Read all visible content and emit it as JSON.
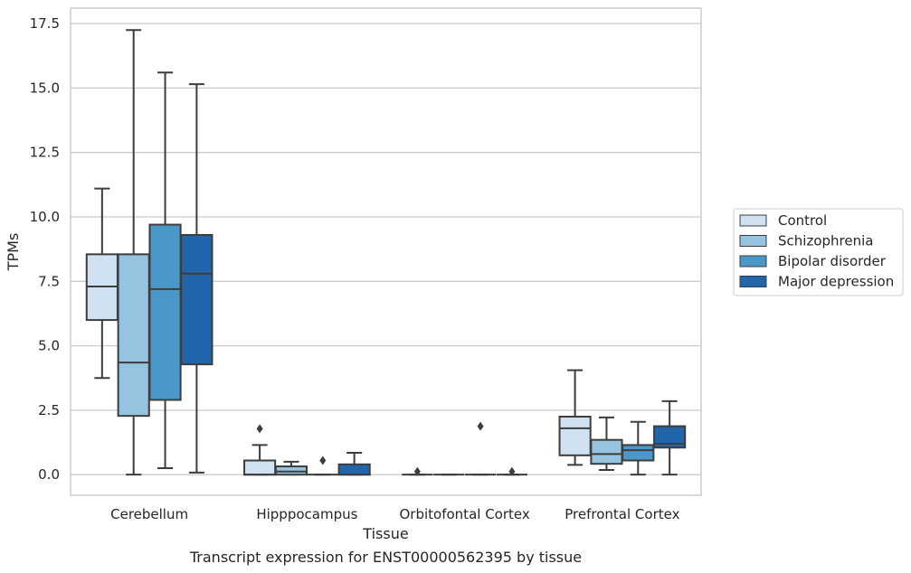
{
  "caption": "Transcript expression for ENST00000562395 by tissue",
  "chart_data": {
    "type": "box",
    "xlabel": "Tissue",
    "ylabel": "TPMs",
    "ylim": [
      -0.8,
      18.1
    ],
    "yticks": [
      0.0,
      2.5,
      5.0,
      7.5,
      10.0,
      12.5,
      15.0,
      17.5
    ],
    "ytick_labels": [
      "0.0",
      "2.5",
      "5.0",
      "7.5",
      "10.0",
      "12.5",
      "15.0",
      "17.5"
    ],
    "grid": "horizontal",
    "legend_position": "right",
    "categories": [
      "Cerebellum",
      "Hipppocampus",
      "Orbitofontal Cortex",
      "Prefrontal Cortex"
    ],
    "series": [
      {
        "name": "Control",
        "color": "#d0e1f2",
        "boxes": [
          {
            "whisker_low": 3.75,
            "q1": 6.0,
            "median": 7.3,
            "q3": 8.55,
            "whisker_high": 11.1,
            "outliers": []
          },
          {
            "whisker_low": 0.0,
            "q1": 0.0,
            "median": 0.0,
            "q3": 0.55,
            "whisker_high": 1.15,
            "outliers": [
              1.78
            ]
          },
          {
            "whisker_low": 0.0,
            "q1": 0.0,
            "median": 0.0,
            "q3": 0.0,
            "whisker_high": 0.0,
            "outliers": [
              0.12
            ]
          },
          {
            "whisker_low": 0.38,
            "q1": 0.75,
            "median": 1.8,
            "q3": 2.25,
            "whisker_high": 4.05,
            "outliers": []
          }
        ]
      },
      {
        "name": "Schizophrenia",
        "color": "#94c4df",
        "boxes": [
          {
            "whisker_low": 0.0,
            "q1": 2.28,
            "median": 4.35,
            "q3": 8.55,
            "whisker_high": 17.25,
            "outliers": []
          },
          {
            "whisker_low": 0.0,
            "q1": 0.0,
            "median": 0.12,
            "q3": 0.32,
            "whisker_high": 0.5,
            "outliers": []
          },
          {
            "whisker_low": 0.0,
            "q1": 0.0,
            "median": 0.0,
            "q3": 0.0,
            "whisker_high": 0.0,
            "outliers": []
          },
          {
            "whisker_low": 0.18,
            "q1": 0.42,
            "median": 0.8,
            "q3": 1.35,
            "whisker_high": 2.22,
            "outliers": []
          }
        ]
      },
      {
        "name": "Bipolar disorder",
        "color": "#4a98c9",
        "boxes": [
          {
            "whisker_low": 0.25,
            "q1": 2.9,
            "median": 7.2,
            "q3": 9.7,
            "whisker_high": 15.6,
            "outliers": []
          },
          {
            "whisker_low": 0.0,
            "q1": 0.0,
            "median": 0.0,
            "q3": 0.0,
            "whisker_high": 0.0,
            "outliers": [
              0.55
            ]
          },
          {
            "whisker_low": 0.0,
            "q1": 0.0,
            "median": 0.0,
            "q3": 0.0,
            "whisker_high": 0.0,
            "outliers": [
              1.88
            ]
          },
          {
            "whisker_low": 0.0,
            "q1": 0.55,
            "median": 0.95,
            "q3": 1.15,
            "whisker_high": 2.05,
            "outliers": []
          }
        ]
      },
      {
        "name": "Major depression",
        "color": "#2165ab",
        "boxes": [
          {
            "whisker_low": 0.08,
            "q1": 4.28,
            "median": 7.8,
            "q3": 9.3,
            "whisker_high": 15.15,
            "outliers": []
          },
          {
            "whisker_low": 0.0,
            "q1": 0.0,
            "median": 0.0,
            "q3": 0.4,
            "whisker_high": 0.85,
            "outliers": []
          },
          {
            "whisker_low": 0.0,
            "q1": 0.0,
            "median": 0.0,
            "q3": 0.0,
            "whisker_high": 0.0,
            "outliers": [
              0.12
            ]
          },
          {
            "whisker_low": 0.0,
            "q1": 1.05,
            "median": 1.2,
            "q3": 1.88,
            "whisker_high": 2.85,
            "outliers": []
          }
        ]
      }
    ]
  }
}
